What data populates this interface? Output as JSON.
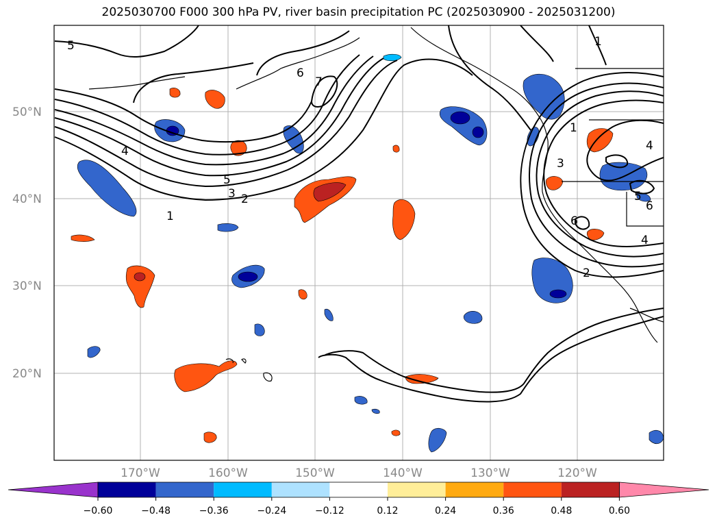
{
  "title": "2025030700 F000 300 hPa PV, river basin precipitation PC (2025030900 - 2025031200)",
  "lat_labels": [
    "50°N",
    "40°N",
    "30°N",
    "20°N"
  ],
  "lon_labels": [
    "170°W",
    "160°W",
    "150°W",
    "140°W",
    "130°W",
    "120°W"
  ],
  "colorbar": {
    "colors": [
      "#9933cc",
      "#000099",
      "#3366cc",
      "#00bbff",
      "#aee2ff",
      "#ffffff",
      "#ffee99",
      "#ffaa11",
      "#ff5511",
      "#bb2222",
      "#ff88aa"
    ],
    "labels": [
      "−0.60",
      "−0.48",
      "−0.36",
      "−0.24",
      "−0.12",
      "0.12",
      "0.24",
      "0.36",
      "0.48",
      "0.60"
    ]
  },
  "contour_labels": [
    "5",
    "6",
    "7",
    "4",
    "5",
    "3",
    "2",
    "1",
    "1",
    "3",
    "4",
    "5",
    "6",
    "6",
    "4",
    "2",
    "1"
  ]
}
